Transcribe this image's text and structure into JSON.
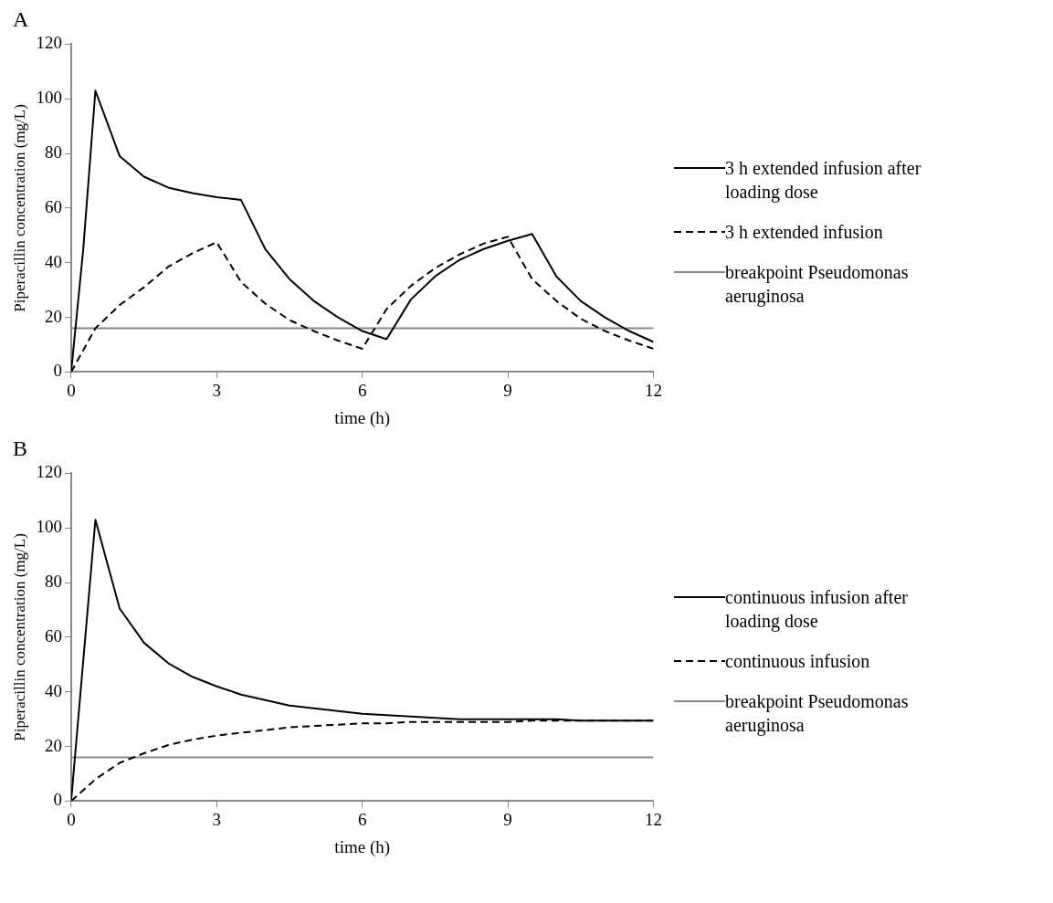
{
  "chart_data": [
    {
      "type": "line",
      "title": "A",
      "xlabel": "time (h)",
      "ylabel": "Piperacillin concentration (mg/L)",
      "xlim": [
        0,
        12
      ],
      "xticks": [
        0,
        3,
        6,
        9,
        12
      ],
      "ylim": [
        0,
        120
      ],
      "yticks": [
        0,
        20,
        40,
        60,
        80,
        100,
        120
      ],
      "legend": "right",
      "marker": "none",
      "series": [
        {
          "name": "3 h extended infusion after loading dose",
          "color": "#000000",
          "line_style": "solid",
          "x": [
            0,
            0.25,
            0.5,
            1,
            1.5,
            2,
            2.5,
            3,
            3.5,
            4,
            4.5,
            5,
            5.5,
            6,
            6.5,
            7,
            7.5,
            8,
            8.5,
            9,
            9.5,
            10,
            10.5,
            11,
            11.5,
            12
          ],
          "values": [
            0,
            45,
            103,
            79,
            71.5,
            67.5,
            65.5,
            64,
            63,
            45,
            34,
            26,
            20,
            15,
            12,
            26.5,
            35,
            41,
            45,
            48,
            50.5,
            35,
            26,
            20,
            15,
            11
          ]
        },
        {
          "name": "3 h extended infusion",
          "color": "#000000",
          "line_style": "dashed",
          "x": [
            0,
            0.5,
            1,
            1.5,
            2,
            2.5,
            3,
            3.5,
            4,
            4.5,
            5,
            5.5,
            6,
            6.5,
            7,
            7.5,
            8,
            8.5,
            9,
            9.5,
            10,
            10.5,
            11,
            11.5,
            12
          ],
          "values": [
            0,
            16,
            24.5,
            31,
            38.5,
            43.5,
            47.5,
            33,
            25,
            19,
            15,
            11.5,
            8.5,
            23,
            31.5,
            38,
            43,
            47,
            49.5,
            34,
            26,
            19.5,
            15,
            11.5,
            8.5
          ]
        },
        {
          "name": "breakpoint Pseudomonas aeruginosa",
          "color": "#888888",
          "line_style": "solid",
          "x": [
            0,
            12
          ],
          "values": [
            16,
            16
          ]
        }
      ]
    },
    {
      "type": "line",
      "title": "B",
      "xlabel": "time (h)",
      "ylabel": "Piperacillin concentration (mg/L)",
      "xlim": [
        0,
        12
      ],
      "xticks": [
        0,
        3,
        6,
        9,
        12
      ],
      "ylim": [
        0,
        120
      ],
      "yticks": [
        0,
        20,
        40,
        60,
        80,
        100,
        120
      ],
      "legend": "right",
      "marker": "none",
      "series": [
        {
          "name": "continuous infusion after loading dose",
          "color": "#000000",
          "line_style": "solid",
          "x": [
            0,
            0.5,
            1,
            1.5,
            2,
            2.5,
            3,
            3.5,
            4,
            4.5,
            5,
            5.5,
            6,
            6.5,
            7,
            7.5,
            8,
            8.5,
            9,
            9.5,
            10,
            10.5,
            11,
            11.5,
            12
          ],
          "values": [
            0,
            103,
            70.5,
            58,
            50.5,
            45.5,
            42,
            39,
            37,
            35,
            34,
            33,
            32,
            31.5,
            31,
            30.5,
            30,
            30,
            30,
            30,
            30,
            29.5,
            29.5,
            29.5,
            29.5
          ]
        },
        {
          "name": "continuous infusion",
          "color": "#000000",
          "line_style": "dashed",
          "x": [
            0,
            0.5,
            1,
            1.5,
            2,
            2.5,
            3,
            3.5,
            4,
            4.5,
            5,
            5.5,
            6,
            6.5,
            7,
            7.5,
            8,
            8.5,
            9,
            9.5,
            10,
            10.5,
            11,
            11.5,
            12
          ],
          "values": [
            0,
            8,
            14,
            17.5,
            20.5,
            22.5,
            24,
            25,
            26,
            27,
            27.5,
            28,
            28.5,
            28.5,
            29,
            29,
            29,
            29,
            29,
            29.5,
            29.5,
            29.5,
            29.5,
            29.5,
            29.5
          ]
        },
        {
          "name": "breakpoint Pseudomonas aeruginosa",
          "color": "#888888",
          "line_style": "solid",
          "x": [
            0,
            12
          ],
          "values": [
            16,
            16
          ]
        }
      ]
    }
  ]
}
